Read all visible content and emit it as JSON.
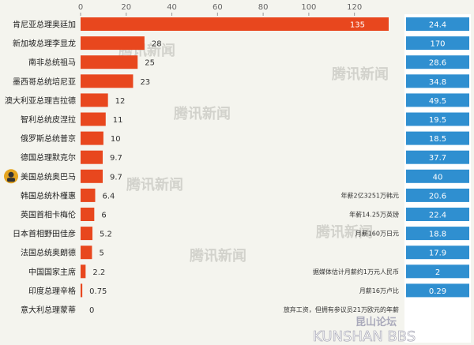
{
  "chart_data": {
    "type": "bar",
    "orientation": "horizontal",
    "xlim": [
      0,
      135
    ],
    "x_ticks": [
      "0",
      "20",
      "40",
      "60",
      "80",
      "100",
      "120"
    ],
    "categories": [
      "肯尼亚总理奥廷加",
      "新加坡总理李显龙",
      "南非总统祖马",
      "墨西哥总统培尼亚",
      "澳大利亚总理吉拉德",
      "智利总统皮涅拉",
      "俄罗斯总统普京",
      "德国总理默克尔",
      "美国总统奥巴马",
      "韩国总统朴槿惠",
      "英国首相卡梅伦",
      "日本首相野田佳彦",
      "法国总统奥朗德",
      "中国国家主席",
      "印度总理辛格",
      "意大利总理蒙蒂"
    ],
    "values": [
      135,
      28,
      25,
      23,
      12,
      11,
      10,
      9.7,
      9.7,
      6.4,
      6,
      5.2,
      5,
      2.2,
      0.75,
      0
    ],
    "value_labels": [
      "135",
      "28",
      "25",
      "23",
      "12",
      "11",
      "10",
      "9.7",
      "9.7",
      "6.4",
      "6",
      "5.2",
      "5",
      "2.2",
      "0.75",
      "0"
    ],
    "bar_color": "#e8471e",
    "right_values": [
      "24.4",
      "170",
      "28.6",
      "34.8",
      "49.5",
      "19.5",
      "18.5",
      "37.7",
      "40",
      "20.6",
      "22.4",
      "18.8",
      "17.9",
      "2",
      "0.29",
      ""
    ],
    "right_color": "#2f8fd0",
    "notes": [
      "",
      "",
      "",
      "",
      "",
      "",
      "",
      "",
      "",
      "年薪2亿3251万韩元",
      "年薪14.25万英镑",
      "月薪160万日元",
      "",
      "据媒体估计月薪约1万元人民币",
      "月薪16万卢比",
      "放弃工资，但拥有参议员21万欧元的年薪"
    ]
  },
  "watermark": "腾讯新闻",
  "footer": {
    "line1": "昆山论坛",
    "line2": "KUNSHAN BBS"
  }
}
